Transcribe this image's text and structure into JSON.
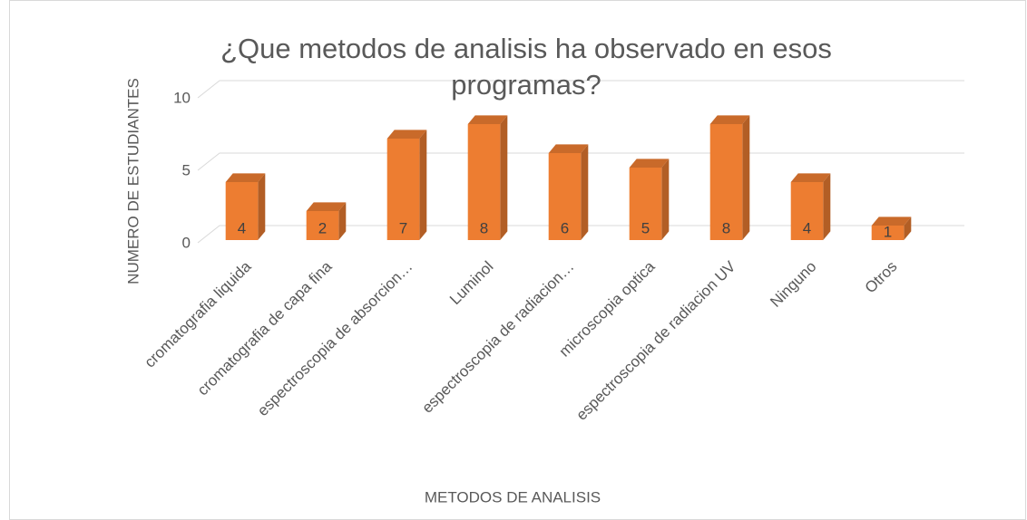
{
  "chart_data": {
    "type": "bar3d",
    "title": "¿Que metodos de analisis ha observado en esos programas?",
    "x_label": "METODOS DE ANALISIS",
    "y_label": "NUMERO DE ESTUDIANTES",
    "categories": [
      "cromatografia liquida",
      "cromatografia de capa fina",
      "espectroscopia de absorcion…",
      "Luminol",
      "espectroscopia de radiacion…",
      "microscopia optica",
      "espectroscopia de radiacion UV",
      "Ninguno",
      "Otros"
    ],
    "values": [
      4,
      2,
      7,
      8,
      6,
      5,
      8,
      4,
      1
    ],
    "color": "#ed7d31",
    "ylim": [
      0,
      10
    ],
    "yticks": [
      0,
      5,
      10
    ],
    "grid": true
  }
}
